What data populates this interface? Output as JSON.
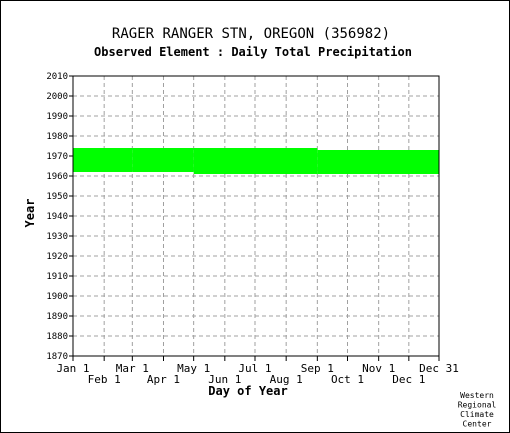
{
  "title": "RAGER RANGER STN, OREGON   (356982)",
  "subtitle": "Observed Element : Daily Total Precipitation",
  "credit": [
    "Western",
    "Regional",
    "Climate",
    "Center"
  ],
  "colors": {
    "data": "#00ff00",
    "grid": "#a0a0a0",
    "axis": "#000000",
    "background": "#ffffff"
  },
  "chart_data": {
    "type": "area",
    "title": "RAGER RANGER STN, OREGON   (356982)",
    "subtitle": "Observed Element : Daily Total Precipitation",
    "xlabel": "Day of Year",
    "ylabel": "Year",
    "xlim": [
      1,
      365
    ],
    "ylim": [
      1870,
      2010
    ],
    "y_ticks": [
      2010,
      2000,
      1990,
      1980,
      1970,
      1960,
      1950,
      1940,
      1930,
      1920,
      1910,
      1900,
      1890,
      1880,
      1870
    ],
    "x_ticks_upper": [
      {
        "label": "Jan 1",
        "day": 1
      },
      {
        "label": "Mar 1",
        "day": 60
      },
      {
        "label": "May 1",
        "day": 121
      },
      {
        "label": "Jul 1",
        "day": 182
      },
      {
        "label": "Sep 1",
        "day": 244
      },
      {
        "label": "Nov 1",
        "day": 305
      },
      {
        "label": "Dec 31",
        "day": 365
      }
    ],
    "x_ticks_lower": [
      {
        "label": "Feb 1",
        "day": 32
      },
      {
        "label": "Apr 1",
        "day": 91
      },
      {
        "label": "Jun 1",
        "day": 152
      },
      {
        "label": "Aug 1",
        "day": 213
      },
      {
        "label": "Oct 1",
        "day": 274
      },
      {
        "label": "Dec 1",
        "day": 335
      }
    ],
    "grid": true,
    "series": [
      {
        "segments": [
          {
            "day_start": 1,
            "day_end": 60,
            "year_start": 1962,
            "year_end": 1974
          },
          {
            "day_start": 60,
            "day_end": 121,
            "year_start": 1962,
            "year_end": 1974
          },
          {
            "day_start": 121,
            "day_end": 244,
            "year_start": 1961,
            "year_end": 1974
          },
          {
            "day_start": 244,
            "day_end": 365,
            "year_start": 1961,
            "year_end": 1973
          }
        ]
      }
    ]
  }
}
